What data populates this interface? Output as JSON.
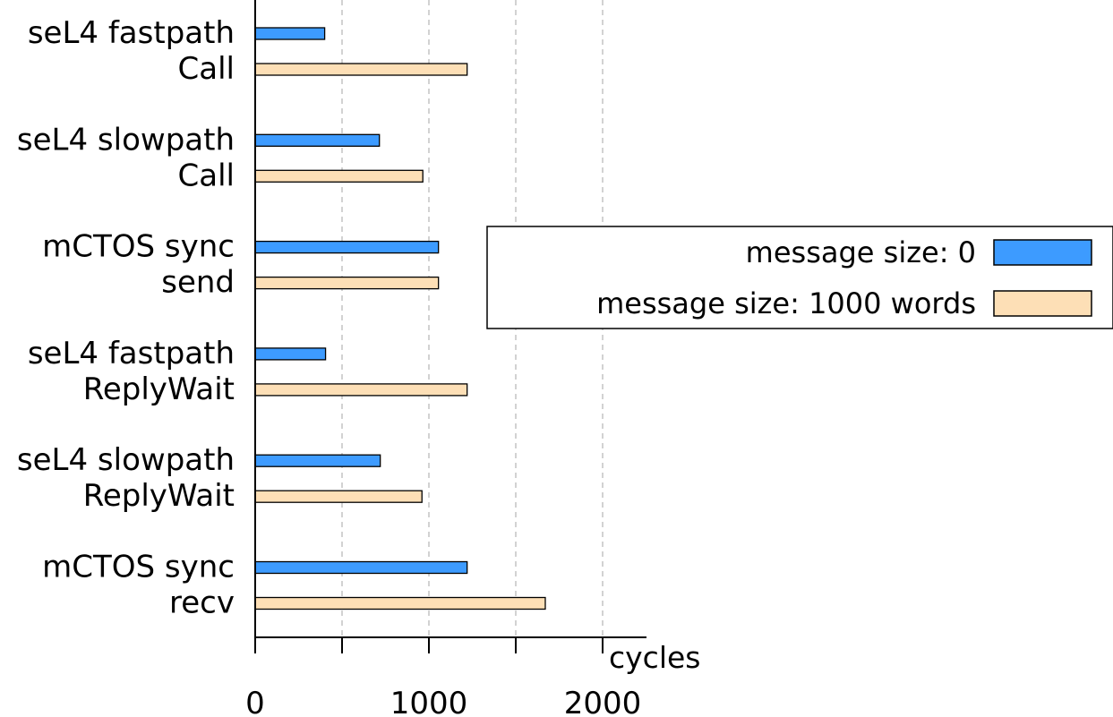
{
  "chart_data": {
    "type": "bar",
    "orientation": "horizontal",
    "categories": [
      [
        "seL4 fastpath",
        "Call"
      ],
      [
        "seL4 slowpath",
        "Call"
      ],
      [
        "mCTOS sync",
        "send"
      ],
      [
        "seL4 fastpath",
        "ReplyWait"
      ],
      [
        "seL4 slowpath",
        "ReplyWait"
      ],
      [
        "mCTOS sync",
        "recv"
      ]
    ],
    "series": [
      {
        "name": "message size: 0",
        "color": "#3d9bff",
        "values": [
          400,
          715,
          1055,
          405,
          720,
          1220
        ]
      },
      {
        "name": "message size: 1000 words",
        "color": "#fddfb6",
        "values": [
          1220,
          965,
          1055,
          1220,
          960,
          1670
        ]
      }
    ],
    "xlim": [
      0,
      2250
    ],
    "xticks": [
      "0",
      "1000",
      "2000"
    ],
    "xgrid": [
      500,
      1000,
      1500,
      2000
    ],
    "xunit": "cycles",
    "legend_position": "right"
  }
}
